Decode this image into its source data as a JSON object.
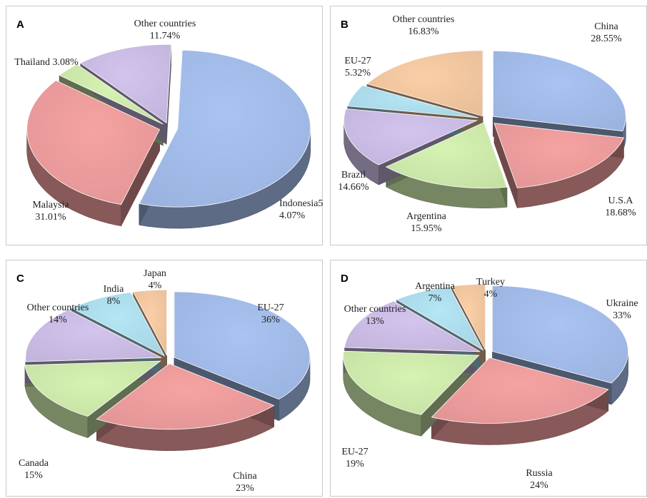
{
  "chart_data": [
    {
      "panel": "A",
      "type": "pie",
      "subtype": "3d-exploded",
      "slices": [
        {
          "name": "Indonesia",
          "value": 54.07,
          "label": [
            "Indonesia5",
            "4.07%"
          ],
          "color": "#a9c3f2"
        },
        {
          "name": "Malaysia",
          "value": 31.01,
          "label": [
            "Malaysia",
            "31.01%"
          ],
          "color": "#f6a2a2"
        },
        {
          "name": "Thailand",
          "value": 3.08,
          "label": [
            "Thailand 3.08%"
          ],
          "color": "#d6f3b2"
        },
        {
          "name": "Other countries",
          "value": 11.74,
          "label": [
            "Other countries",
            "11.74%"
          ],
          "color": "#d3c4ee"
        }
      ]
    },
    {
      "panel": "B",
      "type": "pie",
      "subtype": "3d-exploded",
      "slices": [
        {
          "name": "China",
          "value": 28.55,
          "label": [
            "China",
            "28.55%"
          ],
          "color": "#a9c3f2"
        },
        {
          "name": "U.S.A",
          "value": 18.68,
          "label": [
            "U.S.A",
            "18.68%"
          ],
          "color": "#f6a2a2"
        },
        {
          "name": "Argentina",
          "value": 15.95,
          "label": [
            "Argentina",
            "15.95%"
          ],
          "color": "#d6f3b2"
        },
        {
          "name": "Brazil",
          "value": 14.66,
          "label": [
            "Brazil",
            "14.66%"
          ],
          "color": "#d3c4ee"
        },
        {
          "name": "EU-27",
          "value": 5.32,
          "label": [
            "EU-27",
            "5.32%"
          ],
          "color": "#b4e6f6"
        },
        {
          "name": "Other countries",
          "value": 16.83,
          "label": [
            "Other countries",
            "16.83%"
          ],
          "color": "#fbcfa6"
        }
      ]
    },
    {
      "panel": "C",
      "type": "pie",
      "subtype": "3d-exploded",
      "slices": [
        {
          "name": "EU-27",
          "value": 36,
          "label": [
            "EU-27",
            "36%"
          ],
          "color": "#a9c3f2"
        },
        {
          "name": "China",
          "value": 23,
          "label": [
            "China",
            "23%"
          ],
          "color": "#f6a2a2"
        },
        {
          "name": "Canada",
          "value": 15,
          "label": [
            "Canada",
            "15%"
          ],
          "color": "#d6f3b2"
        },
        {
          "name": "Other countries",
          "value": 14,
          "label": [
            "Other countries",
            "14%"
          ],
          "color": "#d3c4ee"
        },
        {
          "name": "India",
          "value": 8,
          "label": [
            "India",
            "8%"
          ],
          "color": "#b4e6f6"
        },
        {
          "name": "Japan",
          "value": 4,
          "label": [
            "Japan",
            "4%"
          ],
          "color": "#fbcfa6"
        }
      ]
    },
    {
      "panel": "D",
      "type": "pie",
      "subtype": "3d-exploded",
      "slices": [
        {
          "name": "Ukraine",
          "value": 33,
          "label": [
            "Ukraine",
            "33%"
          ],
          "color": "#a9c3f2"
        },
        {
          "name": "Russia",
          "value": 24,
          "label": [
            "Russia",
            "24%"
          ],
          "color": "#f6a2a2"
        },
        {
          "name": "EU-27",
          "value": 19,
          "label": [
            "EU-27",
            "19%"
          ],
          "color": "#d6f3b2"
        },
        {
          "name": "Other countries",
          "value": 13,
          "label": [
            "Other countries",
            "13%"
          ],
          "color": "#d3c4ee"
        },
        {
          "name": "Argentina",
          "value": 7,
          "label": [
            "Argentina",
            "7%"
          ],
          "color": "#b4e6f6"
        },
        {
          "name": "Turkey",
          "value": 4,
          "label": [
            "Turkey",
            "4%"
          ],
          "color": "#fbcfa6"
        }
      ]
    }
  ]
}
